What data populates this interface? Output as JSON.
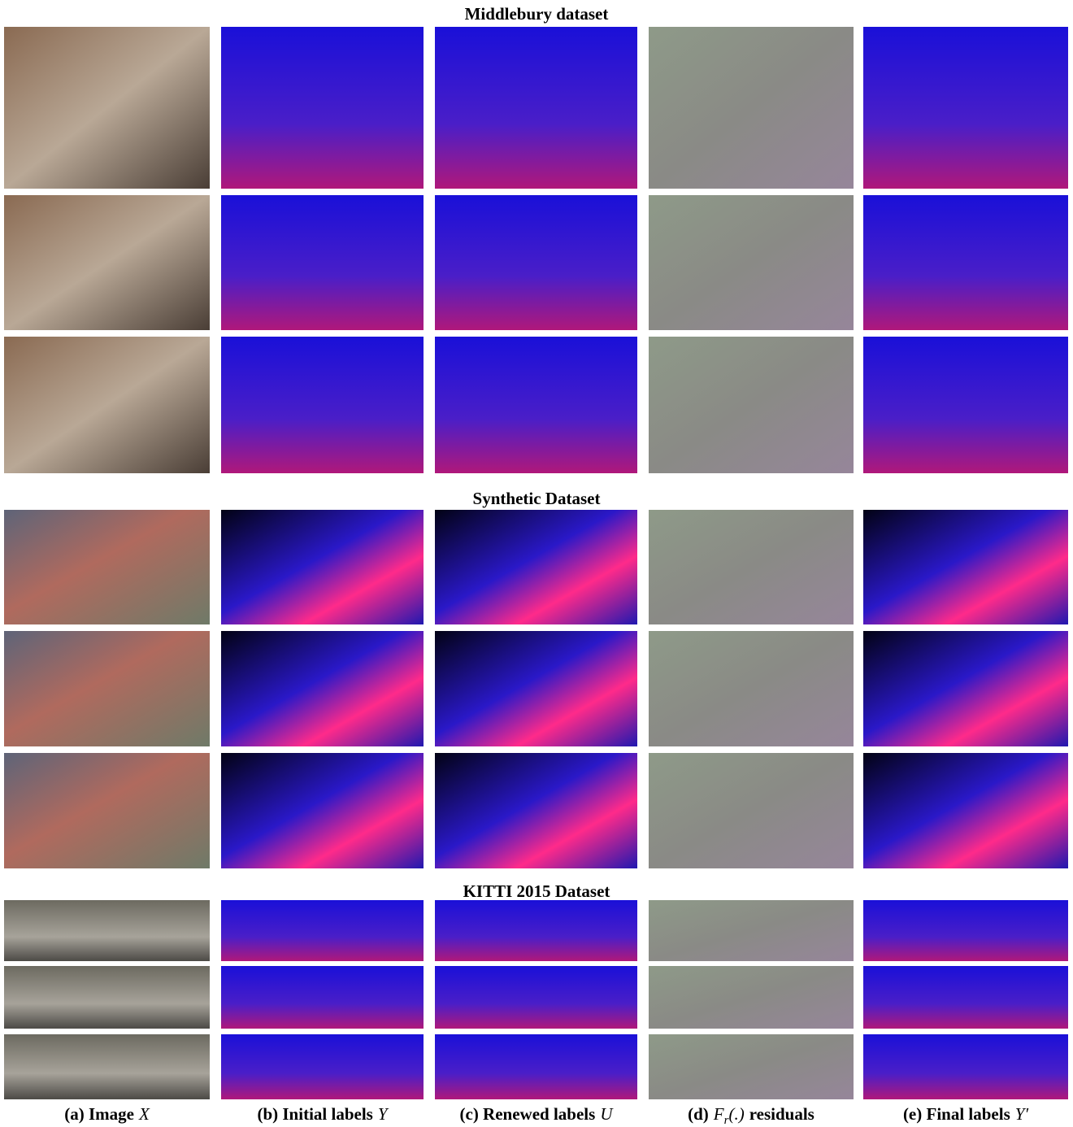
{
  "sections": [
    {
      "title": "Middlebury dataset"
    },
    {
      "title": "Synthetic Dataset"
    },
    {
      "title": "KITTI 2015 Dataset"
    }
  ],
  "columns": [
    {
      "label": "(a) Image",
      "symbol": "X"
    },
    {
      "label": "(b) Initial labels",
      "symbol": "Y"
    },
    {
      "label": "(c) Renewed labels",
      "symbol": "U"
    },
    {
      "label": "(d)",
      "symbol": "F",
      "subscript": "r",
      "after_symbol": "(.)",
      "after": "residuals"
    },
    {
      "label": "(e) Final labels",
      "symbol": "Y′"
    }
  ]
}
